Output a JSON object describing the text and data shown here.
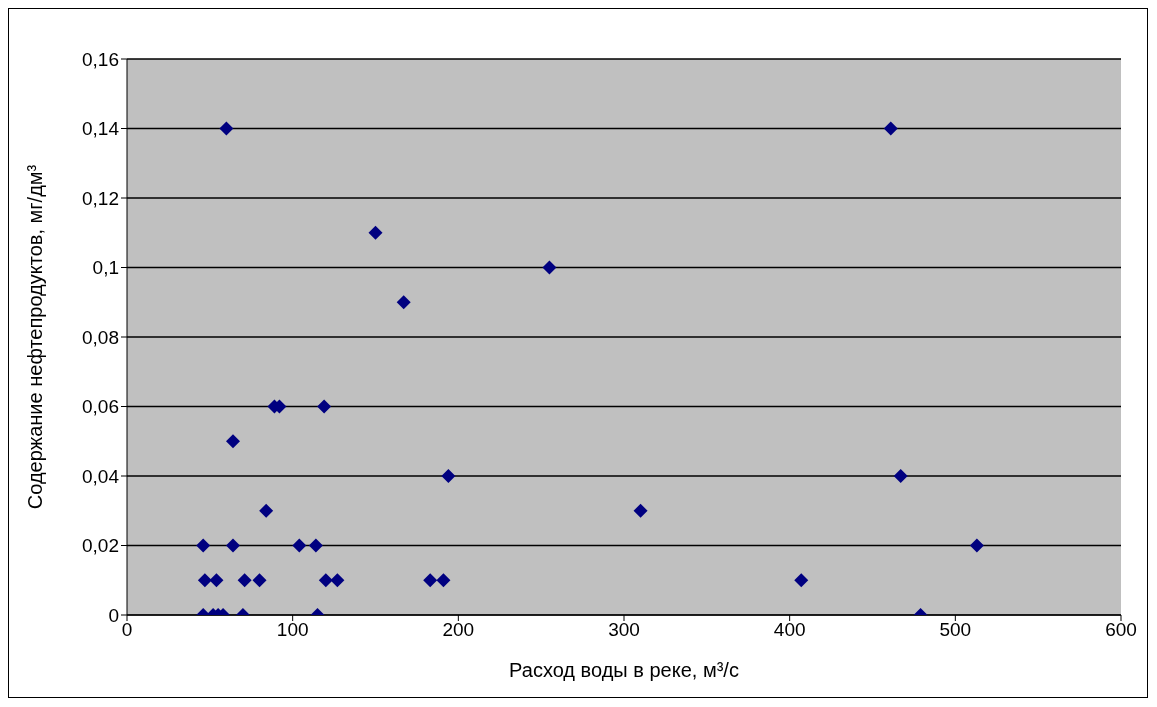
{
  "chart_data": {
    "type": "scatter",
    "xlabel": "Расход  воды в реке,  м³/с",
    "ylabel": "Содержание нефтепродуктов, мг/дм³",
    "x": [
      46,
      52,
      55,
      58,
      70,
      115,
      47,
      54,
      71,
      80,
      120,
      127,
      183,
      191,
      46,
      64,
      104,
      114,
      84,
      64,
      89,
      92,
      119,
      194,
      60,
      150,
      167,
      255,
      310,
      407,
      461,
      467,
      479,
      513
    ],
    "values": [
      0,
      0,
      0,
      0,
      0,
      0,
      0.01,
      0.01,
      0.01,
      0.01,
      0.01,
      0.01,
      0.01,
      0.01,
      0.02,
      0.02,
      0.02,
      0.02,
      0.03,
      0.05,
      0.06,
      0.06,
      0.06,
      0.04,
      0.14,
      0.11,
      0.09,
      0.1,
      0.03,
      0.01,
      0.14,
      0.04,
      0,
      0.02
    ],
    "color": "#000080",
    "marker": "diamond",
    "xlim": [
      0,
      600
    ],
    "xticks": [
      0,
      100,
      200,
      300,
      400,
      500,
      600
    ],
    "ylim": [
      0,
      0.16
    ],
    "yticks": [
      {
        "value": 0,
        "label": "0"
      },
      {
        "value": 0.02,
        "label": "0,02"
      },
      {
        "value": 0.04,
        "label": "0,04"
      },
      {
        "value": 0.06,
        "label": "0,06"
      },
      {
        "value": 0.08,
        "label": "0,08"
      },
      {
        "value": 0.1,
        "label": "0,1"
      },
      {
        "value": 0.12,
        "label": "0,12"
      },
      {
        "value": 0.14,
        "label": "0,14"
      },
      {
        "value": 0.16,
        "label": "0,16"
      }
    ],
    "grid": "y",
    "legend": false
  }
}
